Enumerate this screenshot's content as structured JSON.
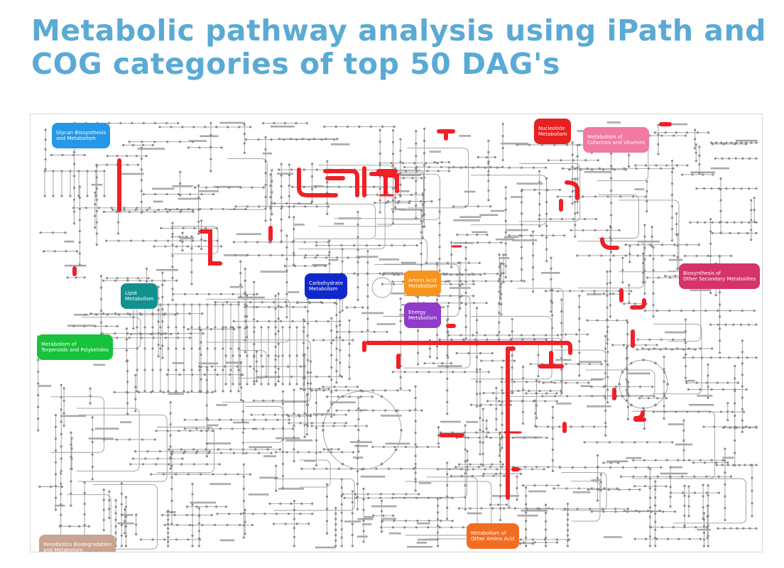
{
  "page": {
    "title_line1": "Metabolic pathway analysis using iPath and",
    "title_line2": "COG categories of top 50 DAG's"
  },
  "pathway_map": {
    "highlight_color": "#f11f26",
    "line_color": "#9a9a9a",
    "categories": [
      {
        "id": "glycan",
        "label": "Glycan Biosynthesis\nand Metabolism",
        "color": "#2597e6"
      },
      {
        "id": "nucleotide",
        "label": "Nucleotide\nMetabolism",
        "color": "#e8201f"
      },
      {
        "id": "cofactors",
        "label": "Metabolism of\nCofactors and Vitamins",
        "color": "#f07aa1"
      },
      {
        "id": "carbohydrate",
        "label": "Carbohydrate\nMetabolism",
        "color": "#1028c9"
      },
      {
        "id": "amino_acid",
        "label": "Amino Acid\nMetabolism",
        "color": "#f7941d"
      },
      {
        "id": "lipid",
        "label": "Lipid\nMetabolism",
        "color": "#10908f"
      },
      {
        "id": "energy",
        "label": "Energy\nMetabolism",
        "color": "#8e3cc9"
      },
      {
        "id": "secondary",
        "label": "Biosynthesis of\nOther Secondary Metabolites",
        "color": "#d6336a"
      },
      {
        "id": "terpenoids",
        "label": "Metabolism of\nTerpenoids and Polyketides",
        "color": "#18c23a"
      },
      {
        "id": "other_amino",
        "label": "Metabolism of\nOther Amino Acid",
        "color": "#f26d21"
      },
      {
        "id": "xenobiotics",
        "label": "Xenobiotics Biodegradation\nand Metabolism",
        "color": "#c9a491"
      }
    ]
  }
}
